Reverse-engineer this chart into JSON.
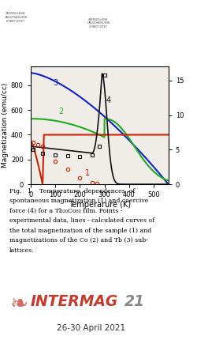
{
  "xlabel": "Temperarure (K)",
  "ylabel_left": "Magnetization (emu/cc)",
  "xlim": [
    0,
    560
  ],
  "ylim_left": [
    0,
    950
  ],
  "ylim_right": [
    0,
    17
  ],
  "bg_color": "#f0ede8",
  "curve1_color": "#cc2200",
  "curve2_color": "#22aa22",
  "curve3_color": "#1122cc",
  "curve4_color": "#111111",
  "points1_x": [
    10,
    30,
    50,
    100,
    150,
    200,
    250,
    270
  ],
  "points1_y": [
    340,
    320,
    310,
    185,
    120,
    50,
    15,
    5
  ],
  "points4_x": [
    10,
    50,
    100,
    150,
    200,
    250,
    280,
    300
  ],
  "points4_y": [
    5.0,
    4.5,
    4.2,
    4.1,
    4.0,
    4.2,
    5.5,
    15.8
  ],
  "fig_caption_1": "Fig.   1.   Temperature  dependences  of",
  "fig_caption_2": "spontaneous magnetization (1) and coercive",
  "fig_caption_3": "force (4) for a Tb",
  "fig_caption_sub1": "20",
  "fig_caption_4": "Co",
  "fig_caption_sub2": "80",
  "fig_caption_5": " film. Points -",
  "fig_caption_6": "experimental data, lines - calculated curves of",
  "fig_caption_7": "the total magnetization of the sample (1) and",
  "fig_caption_8": "magnetizations of the Co (2) and Tb (3) sub-",
  "fig_caption_9": "lattices.",
  "intermag_text": "INTERMAG",
  "intermag_num": "21",
  "intermag_date": "26-30 April 2021",
  "intermag_color": "#c8392b",
  "intermag_num_color": "#888888"
}
